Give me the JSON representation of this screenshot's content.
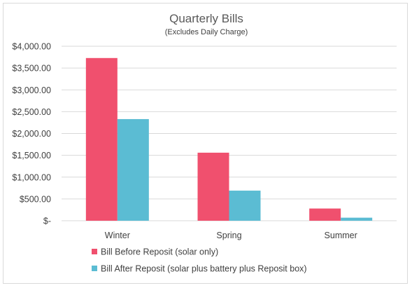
{
  "chart_data": {
    "type": "bar",
    "title": "Quarterly Bills",
    "subtitle": "(Excludes Daily Charge)",
    "categories": [
      "Winter",
      "Spring",
      "Summer"
    ],
    "series": [
      {
        "name": "Bill Before Reposit (solar only)",
        "color": "#f0506e",
        "values": [
          3730,
          1560,
          280
        ]
      },
      {
        "name": "Bill After Reposit (solar plus battery plus Reposit box)",
        "color": "#5bbcd3",
        "values": [
          2330,
          690,
          70
        ]
      }
    ],
    "ylim": [
      0,
      4000
    ],
    "yticks": [
      0,
      500,
      1000,
      1500,
      2000,
      2500,
      3000,
      3500,
      4000
    ],
    "ytick_labels": [
      "$-",
      "$500.00",
      "$1,000.00",
      "$1,500.00",
      "$2,000.00",
      "$2,500.00",
      "$3,000.00",
      "$3,500.00",
      "$4,000.00"
    ],
    "grid": true,
    "legend_position": "bottom-left"
  }
}
